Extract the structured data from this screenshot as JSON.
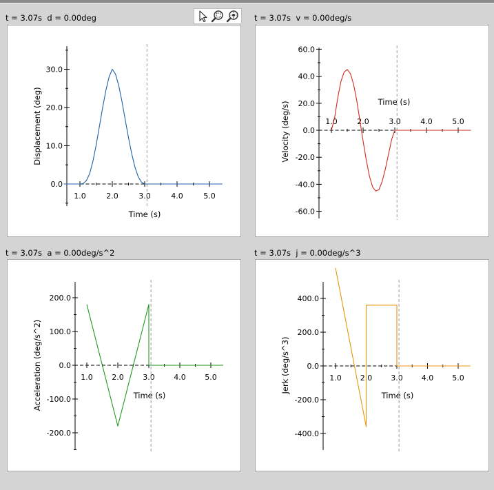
{
  "toolbar": {
    "icons": [
      "pointer-icon",
      "zoom-box-icon",
      "zoom-fit-icon"
    ]
  },
  "colors": {
    "background": "#d4d4d4",
    "plot_background": "#ffffff",
    "marker_line": "#999999",
    "displacement": "#1f5fa8",
    "velocity": "#d22b1f",
    "acceleration": "#1e9a1e",
    "jerk": "#e8940c"
  },
  "panels": [
    {
      "title": "t = 3.07s  d = 0.00deg"
    },
    {
      "title": "t = 3.07s  v = 0.00deg/s"
    },
    {
      "title": "t = 3.07s  a = 0.00deg/s^2"
    },
    {
      "title": "t = 3.07s  j = 0.00deg/s^3"
    }
  ],
  "chart_data": [
    {
      "type": "line",
      "series": [
        {
          "x": [
            0.5,
            1.0,
            1.1,
            1.2,
            1.3,
            1.4,
            1.5,
            1.6,
            1.7,
            1.8,
            1.9,
            2.0,
            2.1,
            2.2,
            2.3,
            2.4,
            2.5,
            2.6,
            2.7,
            2.8,
            2.9,
            3.0,
            5.4
          ],
          "y": [
            0.0,
            0.0,
            0.1,
            0.9,
            2.7,
            5.9,
            10.1,
            15.0,
            19.9,
            24.4,
            28.0,
            30.0,
            28.7,
            25.7,
            21.5,
            16.8,
            12.1,
            7.9,
            4.4,
            1.9,
            0.5,
            0.0,
            0.0
          ]
        }
      ],
      "xlabel": "Time (s)",
      "ylabel": "Displacement (deg)",
      "xticks": [
        1.0,
        2.0,
        3.0,
        4.0,
        5.0
      ],
      "xtick_labels": [
        "1.0",
        "2.0",
        "3.0",
        "4.0",
        "5.0"
      ],
      "yticks": [
        0.0,
        10.0,
        20.0,
        30.0
      ],
      "ytick_labels": [
        "0.0",
        "10.0",
        "20.0",
        "30.0"
      ],
      "xlim": [
        0.5,
        5.4
      ],
      "ylim": [
        -5,
        36
      ],
      "marker_x": 3.07
    },
    {
      "type": "line",
      "series": [
        {
          "x": [
            1.0,
            1.1,
            1.2,
            1.3,
            1.4,
            1.5,
            1.6,
            1.7,
            1.8,
            1.9,
            2.0,
            2.1,
            2.2,
            2.3,
            2.4,
            2.5,
            2.6,
            2.7,
            2.8,
            2.9,
            3.0,
            3.5,
            4.0,
            4.5,
            5.0,
            5.4
          ],
          "y": [
            0.0,
            9.0,
            24.0,
            36.0,
            43.0,
            45.0,
            42.0,
            34.0,
            22.0,
            7.0,
            -8.0,
            -22.0,
            -34.0,
            -42.0,
            -45.0,
            -44.0,
            -38.0,
            -29.0,
            -18.0,
            -7.0,
            0.0,
            0.0,
            0.0,
            0.0,
            0.0,
            0.0
          ]
        }
      ],
      "xlabel": "Time (s)",
      "ylabel": "Velocity (deg/s)",
      "xticks": [
        1.0,
        2.0,
        3.0,
        4.0,
        5.0
      ],
      "xtick_labels": [
        "1.0",
        "2.0",
        "3.0",
        "4.0",
        "5.0"
      ],
      "yticks": [
        -60.0,
        -40.0,
        -20.0,
        0.0,
        20.0,
        40.0,
        60.0
      ],
      "ytick_labels": [
        "-60.0",
        "-40.0",
        "-20.0",
        "0.0",
        "20.0",
        "40.0",
        "60.0"
      ],
      "xlim": [
        0.6,
        5.4
      ],
      "ylim": [
        -64,
        64
      ],
      "marker_x": 3.07
    },
    {
      "type": "line",
      "series": [
        {
          "x": [
            1.0,
            2.0,
            3.0,
            3.0,
            5.4
          ],
          "y": [
            180.0,
            -180.0,
            180.0,
            0.0,
            0.0
          ]
        }
      ],
      "xlabel": "Time (s)",
      "ylabel": "Acceleration (deg/s^2)",
      "xticks": [
        1.0,
        2.0,
        3.0,
        4.0,
        5.0
      ],
      "xtick_labels": [
        "1.0",
        "2.0",
        "3.0",
        "4.0",
        "5.0"
      ],
      "yticks": [
        -200.0,
        -100.0,
        0.0,
        100.0,
        200.0
      ],
      "ytick_labels": [
        "-200.0",
        "-100.0",
        "0.0",
        "100.0",
        "200.0"
      ],
      "xlim": [
        0.6,
        5.4
      ],
      "ylim": [
        -250,
        250
      ],
      "marker_x": 3.07
    },
    {
      "type": "line",
      "series": [
        {
          "x": [
            1.0,
            2.0,
            2.0,
            3.0,
            3.0,
            5.4
          ],
          "y": [
            580.0,
            -360.0,
            360.0,
            360.0,
            0.0,
            0.0
          ]
        }
      ],
      "xlabel": "Time (s)",
      "ylabel": "Jerk (deg/s^3)",
      "xticks": [
        1.0,
        2.0,
        3.0,
        4.0,
        5.0
      ],
      "xtick_labels": [
        "1.0",
        "2.0",
        "3.0",
        "4.0",
        "5.0"
      ],
      "yticks": [
        -400.0,
        -200.0,
        0.0,
        200.0,
        400.0
      ],
      "ytick_labels": [
        "-400.0",
        "-200.0",
        "0.0",
        "200.0",
        "400.0"
      ],
      "xlim": [
        0.6,
        5.4
      ],
      "ylim": [
        -500,
        600
      ],
      "marker_x": 3.07
    }
  ]
}
